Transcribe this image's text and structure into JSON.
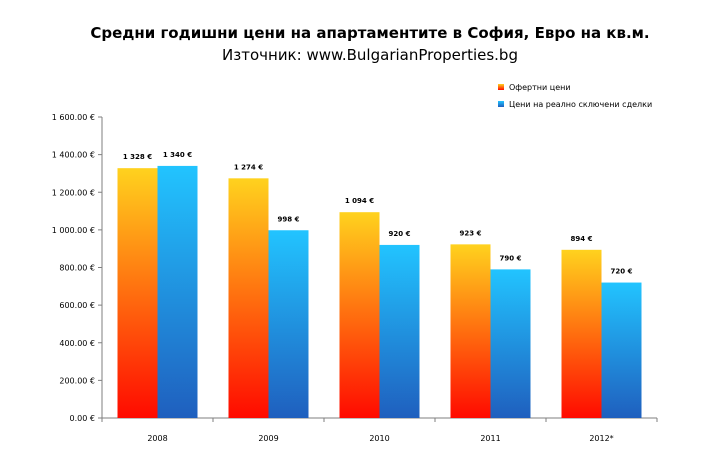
{
  "chart_data": {
    "type": "bar",
    "title": "Средни годишни цени на апартаментите в София, Евро на кв.м.",
    "subtitle": "Източник: www.BulgarianProperties.bg",
    "categories": [
      "2008",
      "2009",
      "2010",
      "2011",
      "2012*"
    ],
    "series": [
      {
        "name": "Офертни цени",
        "values": [
          1328,
          1274,
          1094,
          923,
          894
        ],
        "labels": [
          "1 328 €",
          "1 274 €",
          "1 094 €",
          "923 €",
          "894 €"
        ],
        "color_top": "#ffd21e",
        "color_bottom": "#ff0a00"
      },
      {
        "name": "Цени на реално сключени сделки",
        "values": [
          1340,
          998,
          920,
          790,
          720
        ],
        "labels": [
          "1 340 €",
          "998 €",
          "920 €",
          "790 €",
          "720 €"
        ],
        "color_top": "#22c4ff",
        "color_bottom": "#1f5fbe"
      }
    ],
    "yticks": [
      0,
      200,
      400,
      600,
      800,
      1000,
      1200,
      1400,
      1600
    ],
    "ytick_labels": [
      "0.00 €",
      "200.00 €",
      "400.00 €",
      "600.00 €",
      "800.00 €",
      "1 000.00 €",
      "1 200.00 €",
      "1 400.00 €",
      "1 600.00 €"
    ],
    "ylim": [
      0,
      1600
    ],
    "grid": false,
    "legend": "top-right"
  }
}
